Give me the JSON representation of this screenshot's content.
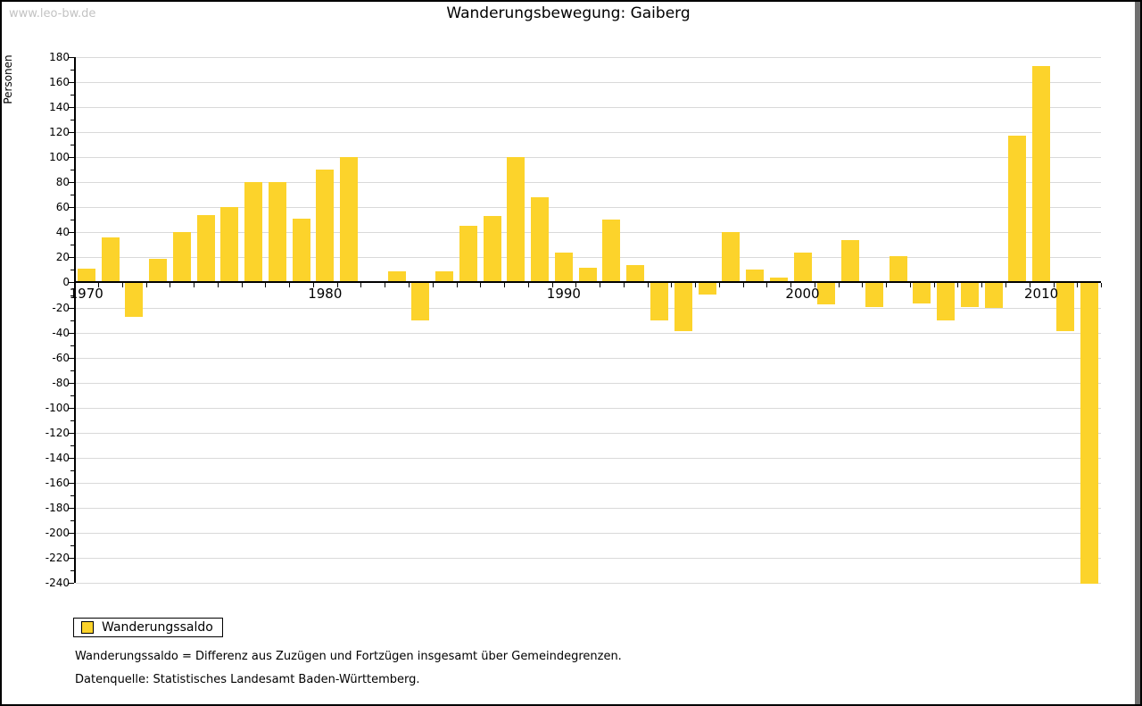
{
  "watermark": "www.leo-bw.de",
  "title": "Wanderungsbewegung: Gaiberg",
  "ylabel": "Personen",
  "legend": {
    "label": "Wanderungssaldo"
  },
  "footnotes": {
    "definition": "Wanderungssaldo = Differenz aus Zuzügen und Fortzügen insgesamt über Gemeindegrenzen.",
    "source": "Datenquelle: Statistisches Landesamt Baden-Württemberg."
  },
  "colors": {
    "bar": "#fcd32b",
    "grid": "#d9d9d9",
    "axis": "#000000",
    "watermark": "#c3c3c3"
  },
  "chart_data": {
    "type": "bar",
    "title": "Wanderungsbewegung: Gaiberg",
    "xlabel": "",
    "ylabel": "Personen",
    "series_name": "Wanderungssaldo",
    "x": [
      1970,
      1971,
      1972,
      1973,
      1974,
      1975,
      1976,
      1977,
      1978,
      1979,
      1980,
      1981,
      1982,
      1983,
      1984,
      1985,
      1986,
      1987,
      1988,
      1989,
      1990,
      1991,
      1992,
      1993,
      1994,
      1995,
      1996,
      1997,
      1998,
      1999,
      2000,
      2001,
      2002,
      2003,
      2004,
      2005,
      2006,
      2007,
      2008,
      2009,
      2010,
      2011,
      2012
    ],
    "values": [
      11,
      36,
      -27,
      19,
      40,
      54,
      60,
      80,
      80,
      51,
      90,
      100,
      0,
      9,
      -30,
      9,
      45,
      53,
      100,
      68,
      24,
      12,
      50,
      14,
      -30,
      -38,
      -9,
      40,
      10,
      4,
      24,
      -17,
      34,
      -19,
      21,
      -16,
      -30,
      -19,
      -20,
      117,
      173,
      -38,
      -240
    ],
    "ylim": [
      -240,
      180
    ],
    "yticks": [
      180,
      160,
      140,
      120,
      100,
      80,
      60,
      40,
      20,
      0,
      -20,
      -40,
      -60,
      -80,
      -100,
      -120,
      -140,
      -160,
      -180,
      -200,
      -220,
      -240
    ],
    "xtick_labels": [
      {
        "year": 1970,
        "label": "1970"
      },
      {
        "year": 1980,
        "label": "1980"
      },
      {
        "year": 1990,
        "label": "1990"
      },
      {
        "year": 2000,
        "label": "2000"
      },
      {
        "year": 2010,
        "label": "2010"
      }
    ],
    "grid": true,
    "legend_position": "bottom-left",
    "bar_color": "#fcd32b"
  }
}
